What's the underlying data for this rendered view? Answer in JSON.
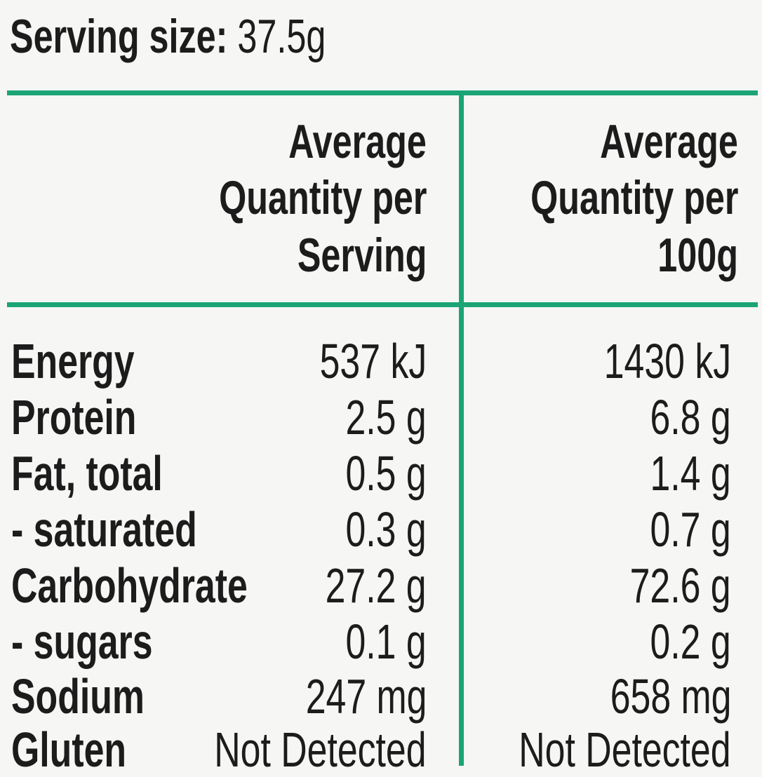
{
  "serving_size": {
    "label": "Serving size:",
    "value": "37.5g"
  },
  "columns": [
    {
      "lines": [
        "Average",
        "Quantity per",
        "Serving"
      ]
    },
    {
      "lines": [
        "Average",
        "Quantity per",
        "100g"
      ]
    }
  ],
  "rows": [
    {
      "label": "Energy",
      "per_serving": "537 kJ",
      "per_100g": "1430 kJ"
    },
    {
      "label": "Protein",
      "per_serving": "2.5 g",
      "per_100g": "6.8 g"
    },
    {
      "label": "Fat, total",
      "per_serving": "0.5 g",
      "per_100g": "1.4 g"
    },
    {
      "label": "- saturated",
      "per_serving": "0.3 g",
      "per_100g": "0.7 g"
    },
    {
      "label": "Carbohydrate",
      "per_serving": "27.2 g",
      "per_100g": "72.6 g"
    },
    {
      "label": "- sugars",
      "per_serving": "0.1 g",
      "per_100g": "0.2 g"
    },
    {
      "label": "Sodium",
      "per_serving": "247 mg",
      "per_100g": "658 mg"
    },
    {
      "label": "Gluten",
      "per_serving": "Not Detected",
      "per_100g": "Not Detected"
    }
  ],
  "colors": {
    "rule": "#1ba476",
    "text": "#1c1c1c",
    "background": "#f6f6f4"
  }
}
